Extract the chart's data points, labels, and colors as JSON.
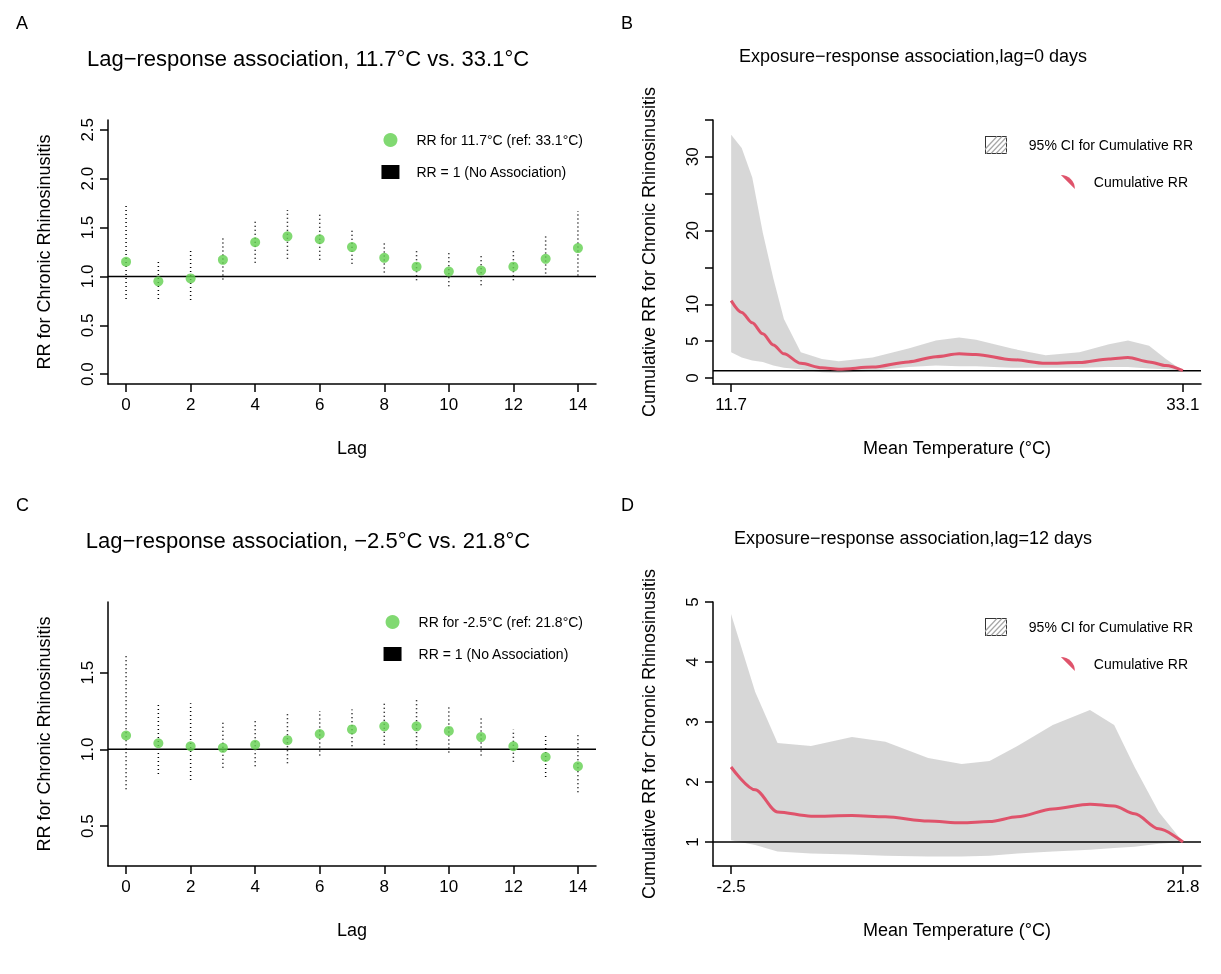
{
  "chart_data": [
    {
      "type": "scatter",
      "title": "Lag−response association, 11.7°C vs. 33.1°C",
      "xlabel": "Lag",
      "ylabel": "RR for Chronic Rhinosinusitis",
      "annotations": [
        "A"
      ],
      "x": [
        0,
        1,
        2,
        3,
        4,
        5,
        6,
        7,
        8,
        9,
        10,
        11,
        12,
        13,
        14
      ],
      "series": [
        {
          "name": "RR for 11.7°C (ref: 33.1°C)",
          "color": "#61d04f",
          "values": [
            1.15,
            0.95,
            0.98,
            1.17,
            1.35,
            1.41,
            1.38,
            1.3,
            1.19,
            1.1,
            1.05,
            1.06,
            1.1,
            1.18,
            1.29
          ],
          "errors": [
            [
              0.77,
              1.72
            ],
            [
              0.77,
              1.17
            ],
            [
              0.76,
              1.27
            ],
            [
              0.97,
              1.41
            ],
            [
              1.14,
              1.59
            ],
            [
              1.18,
              1.68
            ],
            [
              1.17,
              1.63
            ],
            [
              1.13,
              1.49
            ],
            [
              1.04,
              1.36
            ],
            [
              0.96,
              1.28
            ],
            [
              0.9,
              1.24
            ],
            [
              0.91,
              1.22
            ],
            [
              0.96,
              1.26
            ],
            [
              1.03,
              1.41
            ],
            [
              1.01,
              1.67
            ]
          ]
        }
      ],
      "xlim": [
        -0.56,
        14.56
      ],
      "xticks": [
        0,
        2,
        4,
        6,
        8,
        10,
        12,
        14
      ],
      "ylim": [
        -0.1,
        2.6
      ],
      "yticks": [
        {
          "value": 0,
          "label": "0.0"
        },
        {
          "value": 0.5,
          "label": "0.5"
        },
        {
          "value": 1,
          "label": "1.0"
        },
        {
          "value": 1.5,
          "label": "1.5"
        },
        {
          "value": 2,
          "label": "2.0"
        },
        {
          "value": 2.5,
          "label": "2.5"
        }
      ],
      "ref_lines": [
        {
          "axis": "y",
          "value": 1,
          "label": "RR = 1 (No Association)",
          "color": "#000000"
        }
      ],
      "legend": "top right",
      "marker": "circle",
      "grid": false
    },
    {
      "type": "line",
      "title": "Exposure−response association,lag=0 days",
      "xlabel": "Mean Temperature (°C)",
      "ylabel": "Cumulative RR for Chronic Rhinosinusitis",
      "annotations": [
        "B",
        "95% CI for Cumulative RR"
      ],
      "x": [
        11.7,
        12.2,
        12.7,
        13.2,
        13.7,
        14.2,
        15.0,
        16.0,
        16.8,
        18.4,
        20.1,
        21.4,
        22.5,
        23.3,
        25.0,
        26.6,
        28.2,
        29.6,
        30.5,
        31.5,
        32.3,
        33.1
      ],
      "series": [
        {
          "name": "Cumulative RR",
          "color": "#df536b",
          "values": [
            10.5,
            8.9,
            7.5,
            6.0,
            4.5,
            3.3,
            2.0,
            1.4,
            1.2,
            1.5,
            2.2,
            2.9,
            3.3,
            3.2,
            2.5,
            2.0,
            2.1,
            2.6,
            2.8,
            2.2,
            1.7,
            1.0
          ],
          "lower": [
            3.5,
            2.8,
            2.4,
            2.2,
            1.7,
            1.4,
            1.2,
            0.8,
            0.7,
            1.0,
            1.5,
            1.7,
            1.6,
            1.6,
            1.4,
            1.4,
            1.4,
            1.5,
            1.5,
            1.3,
            1.2,
            1.0
          ],
          "upper": [
            33.0,
            31.2,
            27.2,
            19.7,
            13.5,
            8.0,
            3.5,
            2.6,
            2.3,
            2.8,
            4.0,
            5.1,
            5.5,
            5.2,
            4.0,
            3.1,
            3.5,
            4.6,
            5.1,
            4.4,
            2.6,
            1.0
          ]
        }
      ],
      "xlim": [
        10.84,
        33.96
      ],
      "xticks": [
        11.7,
        33.1
      ],
      "ylim": [
        -0.8,
        35
      ],
      "yticks": [
        0,
        5,
        10,
        {
          "value": 15,
          "label": null
        },
        20,
        {
          "value": 25,
          "label": null
        },
        30,
        {
          "value": 35,
          "label": null
        }
      ],
      "ref_lines": [
        {
          "axis": "y",
          "value": 1,
          "color": "#000000"
        }
      ],
      "legend": "top right",
      "marker": "none",
      "grid": false
    },
    {
      "type": "scatter",
      "title": "Lag−response association, −2.5°C vs. 21.8°C",
      "xlabel": "Lag",
      "ylabel": "RR for Chronic Rhinosinusitis",
      "annotations": [
        "C"
      ],
      "x": [
        0,
        1,
        2,
        3,
        4,
        5,
        6,
        7,
        8,
        9,
        10,
        11,
        12,
        13,
        14
      ],
      "series": [
        {
          "name": "RR for -2.5°C (ref: 21.8°C)",
          "color": "#61d04f",
          "values": [
            1.09,
            1.04,
            1.02,
            1.01,
            1.03,
            1.06,
            1.1,
            1.13,
            1.15,
            1.15,
            1.12,
            1.08,
            1.02,
            0.95,
            0.89
          ],
          "errors": [
            [
              0.74,
              1.61
            ],
            [
              0.84,
              1.29
            ],
            [
              0.8,
              1.3
            ],
            [
              0.88,
              1.18
            ],
            [
              0.89,
              1.2
            ],
            [
              0.91,
              1.24
            ],
            [
              0.96,
              1.25
            ],
            [
              1.02,
              1.26
            ],
            [
              1.03,
              1.3
            ],
            [
              1.0,
              1.32
            ],
            [
              0.98,
              1.29
            ],
            [
              0.96,
              1.21
            ],
            [
              0.92,
              1.13
            ],
            [
              0.82,
              1.1
            ],
            [
              0.72,
              1.1
            ]
          ]
        }
      ],
      "xlim": [
        -0.56,
        14.56
      ],
      "xticks": [
        0,
        2,
        4,
        6,
        8,
        10,
        12,
        14
      ],
      "ylim": [
        0.24,
        1.96
      ],
      "yticks": [
        {
          "value": 0.5,
          "label": "0.5"
        },
        {
          "value": 1,
          "label": "1.0"
        },
        {
          "value": 1.5,
          "label": "1.5"
        }
      ],
      "ref_lines": [
        {
          "axis": "y",
          "value": 1,
          "label": "RR = 1 (No Association)",
          "color": "#000000"
        }
      ],
      "legend": "top right",
      "marker": "circle",
      "grid": false
    },
    {
      "type": "line",
      "title": "Exposure−response association,lag=12 days",
      "xlabel": "Mean Temperature (°C)",
      "ylabel": "Cumulative RR for Chronic Rhinosinusitis",
      "annotations": [
        "D",
        "95% CI for Cumulative RR"
      ],
      "x": [
        -2.5,
        -1.2,
        0.0,
        1.8,
        4.0,
        5.8,
        8.1,
        9.9,
        11.4,
        12.9,
        14.8,
        16.8,
        18.1,
        19.2,
        20.5,
        21.8
      ],
      "series": [
        {
          "name": "Cumulative RR",
          "color": "#df536b",
          "values": [
            2.25,
            1.87,
            1.5,
            1.43,
            1.44,
            1.42,
            1.35,
            1.32,
            1.34,
            1.42,
            1.55,
            1.63,
            1.6,
            1.47,
            1.22,
            1.0
          ],
          "lower": [
            1.03,
            0.95,
            0.84,
            0.81,
            0.79,
            0.77,
            0.76,
            0.76,
            0.77,
            0.81,
            0.84,
            0.87,
            0.9,
            0.92,
            0.97,
            1.0
          ],
          "upper": [
            4.8,
            3.5,
            2.65,
            2.6,
            2.75,
            2.67,
            2.4,
            2.3,
            2.35,
            2.6,
            2.95,
            3.2,
            2.95,
            2.25,
            1.5,
            1.0
          ]
        }
      ],
      "xlim": [
        -3.47,
        22.77
      ],
      "xticks": [
        -2.5,
        21.8
      ],
      "ylim": [
        0.6,
        5
      ],
      "yticks": [
        1,
        2,
        3,
        4,
        5
      ],
      "ref_lines": [
        {
          "axis": "y",
          "value": 1,
          "color": "#000000"
        }
      ],
      "legend": "top right",
      "marker": "none",
      "grid": false
    }
  ]
}
